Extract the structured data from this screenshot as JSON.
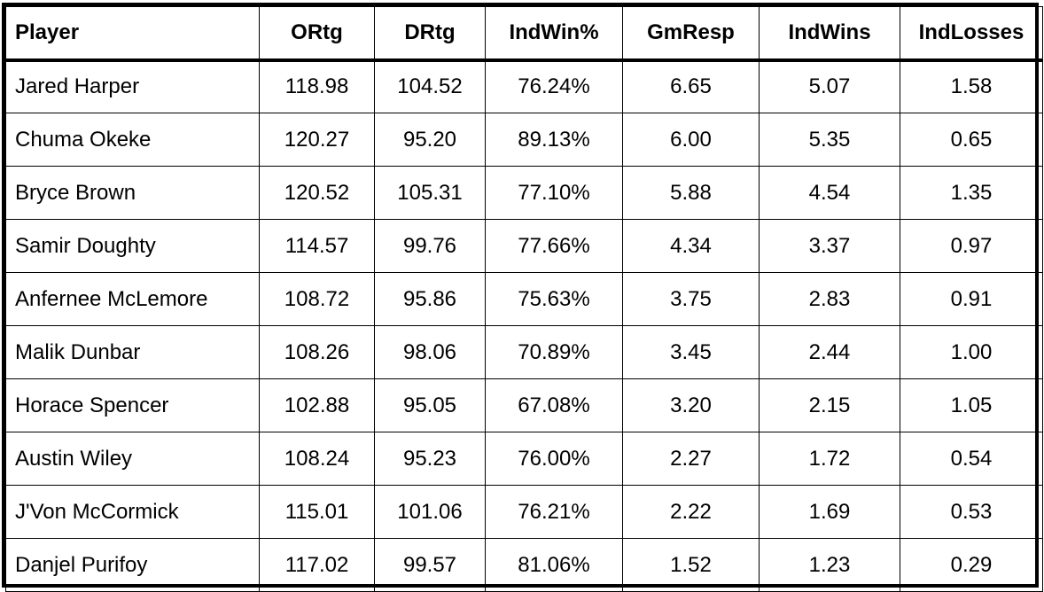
{
  "table": {
    "headers": [
      "Player",
      "ORtg",
      "DRtg",
      "IndWin%",
      "GmResp",
      "IndWins",
      "IndLosses"
    ],
    "rows": [
      [
        "Jared Harper",
        "118.98",
        "104.52",
        "76.24%",
        "6.65",
        "5.07",
        "1.58"
      ],
      [
        "Chuma Okeke",
        "120.27",
        "95.20",
        "89.13%",
        "6.00",
        "5.35",
        "0.65"
      ],
      [
        "Bryce Brown",
        "120.52",
        "105.31",
        "77.10%",
        "5.88",
        "4.54",
        "1.35"
      ],
      [
        "Samir Doughty",
        "114.57",
        "99.76",
        "77.66%",
        "4.34",
        "3.37",
        "0.97"
      ],
      [
        "Anfernee McLemore",
        "108.72",
        "95.86",
        "75.63%",
        "3.75",
        "2.83",
        "0.91"
      ],
      [
        "Malik Dunbar",
        "108.26",
        "98.06",
        "70.89%",
        "3.45",
        "2.44",
        "1.00"
      ],
      [
        "Horace Spencer",
        "102.88",
        "95.05",
        "67.08%",
        "3.20",
        "2.15",
        "1.05"
      ],
      [
        "Austin Wiley",
        "108.24",
        "95.23",
        "76.00%",
        "2.27",
        "1.72",
        "0.54"
      ],
      [
        "J'Von McCormick",
        "115.01",
        "101.06",
        "76.21%",
        "2.22",
        "1.69",
        "0.53"
      ],
      [
        "Danjel Purifoy",
        "117.02",
        "99.57",
        "81.06%",
        "1.52",
        "1.23",
        "0.29"
      ]
    ]
  }
}
